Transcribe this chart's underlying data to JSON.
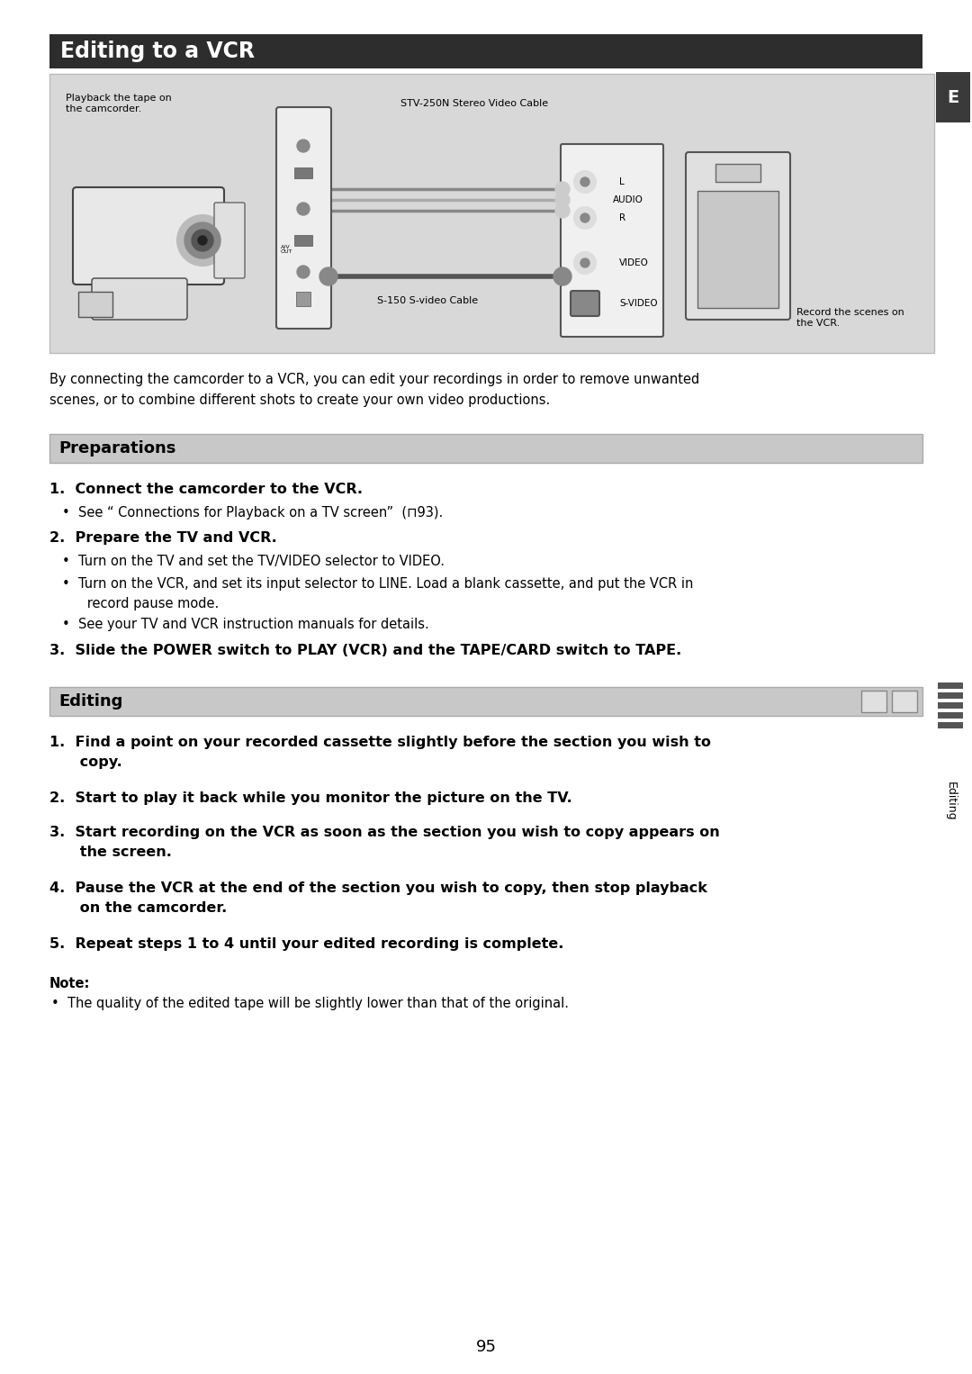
{
  "page_bg": "#ffffff",
  "title_bar_color": "#2d2d2d",
  "title_text": "Editing to a VCR",
  "title_text_color": "#ffffff",
  "title_fontsize": 17,
  "diagram_bg": "#d8d8d8",
  "section_bar_color": "#c8c8c8",
  "section_border_color": "#aaaaaa",
  "section_title_fontsize": 13,
  "body_fontsize": 10.5,
  "bold_item_fontsize": 11.5,
  "page_number": "95",
  "sidebar_text": "Editing",
  "tab_e_bg": "#3a3a3a",
  "tab_e_text": "E",
  "preparations_title": "Preparations",
  "editing_title": "Editing",
  "intro_text": "By connecting the camcorder to a VCR, you can edit your recordings in order to remove unwanted\nscenes, or to combine different shots to create your own video productions.",
  "prep_item1_bold": "1.  Connect the camcorder to the VCR.",
  "prep_item1_bullet": "•  See “ Connections for Playback on a TV screen”  (⊓93).",
  "prep_item2_bold": "2.  Prepare the TV and VCR.",
  "prep_item2_bullets": [
    "•  Turn on the TV and set the TV/VIDEO selector to VIDEO.",
    "•  Turn on the VCR, and set its input selector to LINE. Load a blank cassette, and put the VCR in\n      record pause mode.",
    "•  See your TV and VCR instruction manuals for details."
  ],
  "prep_item3_bold": "3.  Slide the POWER switch to PLAY (VCR) and the TAPE/CARD switch to TAPE.",
  "edit_item1_bold": "1.  Find a point on your recorded cassette slightly before the section you wish to\n      copy.",
  "edit_item2_bold": "2.  Start to play it back while you monitor the picture on the TV.",
  "edit_item3_bold": "3.  Start recording on the VCR as soon as the section you wish to copy appears on\n      the screen.",
  "edit_item4_bold": "4.  Pause the VCR at the end of the section you wish to copy, then stop playback\n      on the camcorder.",
  "edit_item5_bold": "5.  Repeat steps 1 to 4 until your edited recording is complete.",
  "note_title": "Note:",
  "note_bullet": "•  The quality of the edited tape will be slightly lower than that of the original.",
  "diagram_label_playback": "Playback the tape on\nthe camcorder.",
  "diagram_label_cable1": "STV-250N Stereo Video Cable",
  "diagram_label_audio_l": "L",
  "diagram_label_audio": "AUDIO",
  "diagram_label_audio_r": "R",
  "diagram_label_video": "VIDEO",
  "diagram_label_svideo": "S-VIDEO",
  "diagram_label_cable2": "S-150 S-video Cable",
  "diagram_label_record": "Record the scenes on\nthe VCR."
}
